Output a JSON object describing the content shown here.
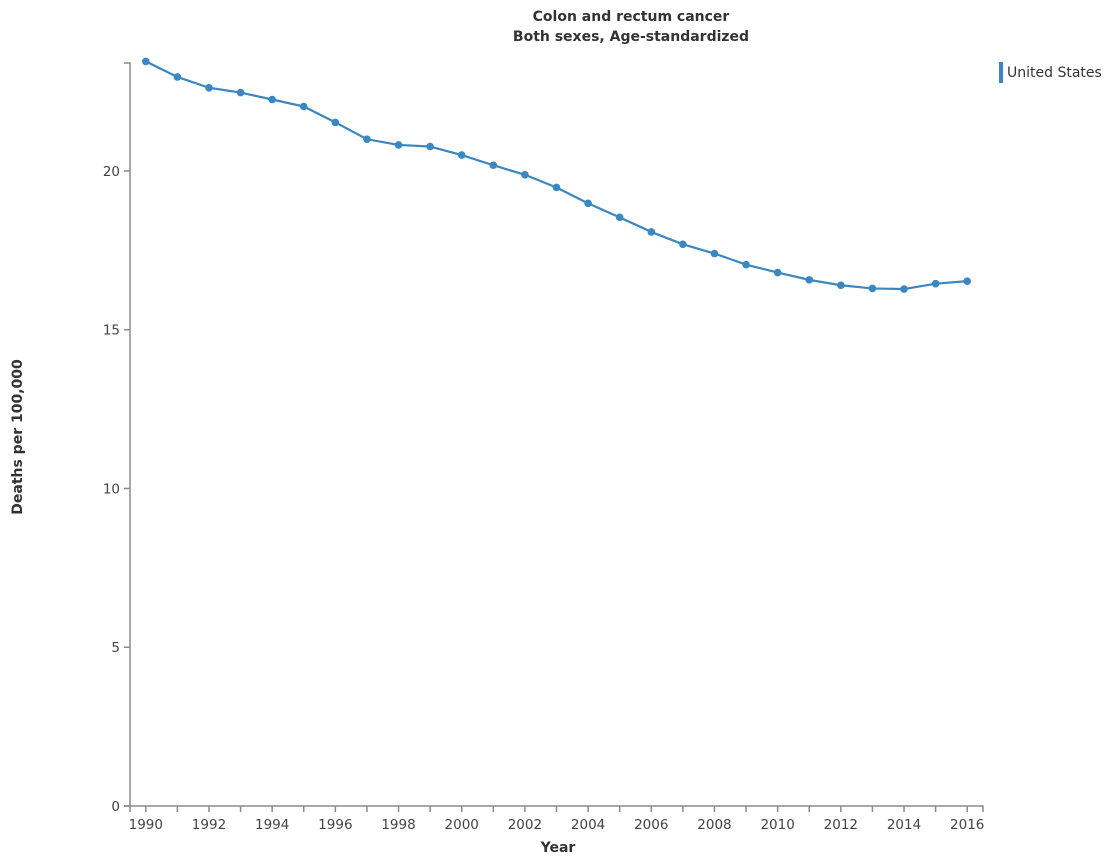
{
  "chart_data": {
    "type": "line",
    "title": "Colon and rectum cancer",
    "subtitle": "Both sexes, Age-standardized",
    "xlabel": "Year",
    "ylabel": "Deaths per 100,000",
    "x": [
      1990,
      1991,
      1992,
      1993,
      1994,
      1995,
      1996,
      1997,
      1998,
      1999,
      2000,
      2001,
      2002,
      2003,
      2004,
      2005,
      2006,
      2007,
      2008,
      2009,
      2010,
      2011,
      2012,
      2013,
      2014,
      2015,
      2016
    ],
    "x_tick_labels": [
      "1990",
      "1992",
      "1994",
      "1996",
      "1998",
      "2000",
      "2002",
      "2004",
      "2006",
      "2008",
      "2010",
      "2012",
      "2014",
      "2016"
    ],
    "y_tick_labels": [
      "0",
      "5",
      "10",
      "15",
      "20"
    ],
    "xlim": [
      1989.5,
      2016.5
    ],
    "ylim": [
      0,
      23.4
    ],
    "grid": false,
    "legend_position": "top-right",
    "series": [
      {
        "name": "United States",
        "color": "#3a87c1",
        "values": [
          23.45,
          22.96,
          22.62,
          22.47,
          22.25,
          22.03,
          21.53,
          21.0,
          20.82,
          20.77,
          20.5,
          20.18,
          19.88,
          19.48,
          18.98,
          18.54,
          18.08,
          17.69,
          17.4,
          17.05,
          16.8,
          16.57,
          16.4,
          16.3,
          16.28,
          16.45,
          16.53
        ]
      }
    ]
  }
}
